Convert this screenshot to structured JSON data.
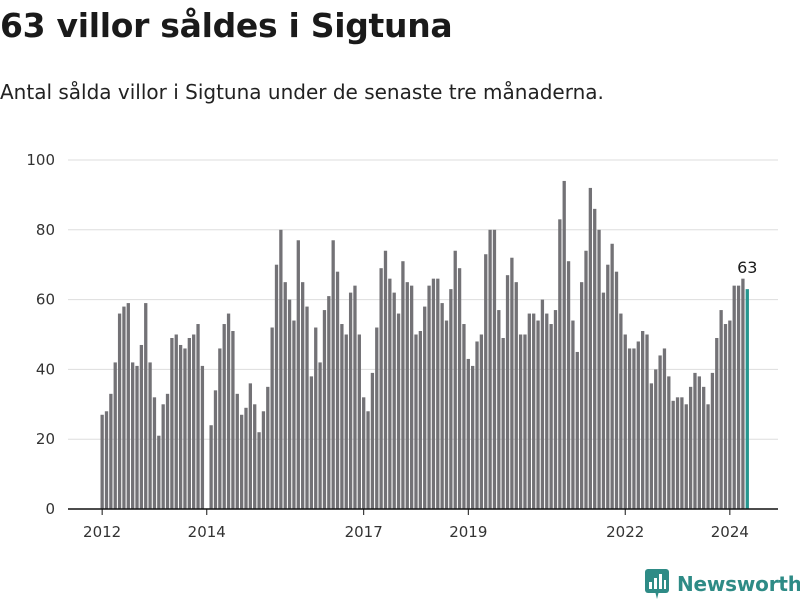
{
  "header": {
    "title": "63 villor såldes i Sigtuna",
    "subtitle": "Antal sålda villor i Sigtuna under de senaste tre månaderna."
  },
  "brand": {
    "name": "Newsworthy",
    "icon": "newsworthy-logo-icon",
    "color": "#2e8b86"
  },
  "colors": {
    "bar": "#737276",
    "highlight": "#26968f",
    "grid": "#dddddd",
    "axis": "#111111"
  },
  "chart_data": {
    "type": "bar",
    "title": "63 villor såldes i Sigtuna",
    "xlabel": "",
    "ylabel": "",
    "ylim": [
      0,
      100
    ],
    "yticks": [
      0,
      20,
      40,
      60,
      80,
      100
    ],
    "grid": true,
    "x_start": {
      "year": 2012,
      "month": 1
    },
    "xticks": [
      {
        "label": "2012",
        "index": 0
      },
      {
        "label": "2014",
        "index": 24
      },
      {
        "label": "2017",
        "index": 60
      },
      {
        "label": "2019",
        "index": 84
      },
      {
        "label": "2022",
        "index": 120
      },
      {
        "label": "2024",
        "index": 144
      }
    ],
    "highlight_label": "63",
    "values": [
      27,
      28,
      33,
      42,
      56,
      58,
      59,
      42,
      41,
      47,
      59,
      42,
      32,
      21,
      30,
      33,
      49,
      50,
      47,
      46,
      49,
      50,
      53,
      41,
      0,
      24,
      34,
      46,
      53,
      56,
      51,
      33,
      27,
      29,
      36,
      30,
      22,
      28,
      35,
      52,
      70,
      80,
      65,
      60,
      54,
      77,
      65,
      58,
      38,
      52,
      42,
      57,
      61,
      77,
      68,
      53,
      50,
      62,
      64,
      50,
      32,
      28,
      39,
      52,
      69,
      74,
      66,
      62,
      56,
      71,
      65,
      64,
      50,
      51,
      58,
      64,
      66,
      66,
      59,
      54,
      63,
      74,
      69,
      53,
      43,
      41,
      48,
      50,
      73,
      80,
      80,
      57,
      49,
      67,
      72,
      65,
      50,
      50,
      56,
      56,
      54,
      60,
      56,
      53,
      57,
      83,
      94,
      71,
      54,
      45,
      65,
      74,
      92,
      86,
      80,
      62,
      70,
      76,
      68,
      56,
      50,
      46,
      46,
      48,
      51,
      50,
      36,
      40,
      44,
      46,
      38,
      31,
      32,
      32,
      30,
      35,
      39,
      38,
      35,
      30,
      39,
      49,
      57,
      53,
      54,
      64,
      64,
      66,
      63
    ]
  }
}
